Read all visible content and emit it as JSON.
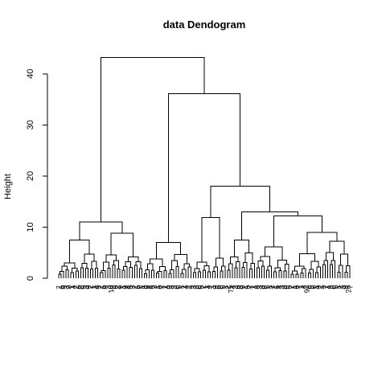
{
  "chart_data": {
    "type": "dendrogram",
    "title": "data Dendogram",
    "ylabel": "Height",
    "xlabel": "",
    "ylim": [
      0,
      45
    ],
    "yticks": [
      0,
      10,
      20,
      30,
      40
    ],
    "leaf_count": 120,
    "merges": [
      {
        "left": [
          1,
          35
        ],
        "right": [
          36,
          120
        ],
        "height": 43.2
      },
      {
        "left": [
          36,
          55
        ],
        "right": [
          56,
          120
        ],
        "height": 36.1
      },
      {
        "left": [
          56,
          69
        ],
        "right": [
          70,
          120
        ],
        "height": 18.0
      },
      {
        "left": [
          70,
          81
        ],
        "right": [
          82,
          120
        ],
        "height": 13.0
      },
      {
        "left": [
          82,
          95
        ],
        "right": [
          96,
          120
        ],
        "height": 12.2
      },
      {
        "left": [
          1,
          17
        ],
        "right": [
          18,
          35
        ],
        "height": 11.0
      },
      {
        "left": [
          56,
          63
        ],
        "right": [
          64,
          69
        ],
        "height": 11.9
      },
      {
        "left": [
          96,
          108
        ],
        "right": [
          109,
          120
        ],
        "height": 9.0
      },
      {
        "left": [
          18,
          26
        ],
        "right": [
          27,
          35
        ],
        "height": 8.8
      },
      {
        "left": [
          1,
          9
        ],
        "right": [
          10,
          17
        ],
        "height": 7.5
      },
      {
        "left": [
          36,
          45
        ],
        "right": [
          46,
          55
        ],
        "height": 7.0
      },
      {
        "left": [
          70,
          75
        ],
        "right": [
          76,
          81
        ],
        "height": 7.5
      },
      {
        "left": [
          109,
          114
        ],
        "right": [
          115,
          120
        ],
        "height": 7.2
      },
      {
        "left": [
          82,
          88
        ],
        "right": [
          89,
          95
        ],
        "height": 6.1
      }
    ],
    "leaf_labels": [
      "7",
      "6",
      "9",
      "3",
      "8",
      "1",
      "4",
      "2",
      "6",
      "8",
      "5",
      "3",
      "9",
      "2",
      "1",
      "4",
      "5",
      "7",
      "6",
      "9",
      "3",
      "10",
      "8",
      "6",
      "2",
      "9",
      "1",
      "0",
      "4",
      "5",
      "3",
      "7",
      "6",
      "8",
      "1",
      "8",
      "6",
      "4",
      "5",
      "3",
      "1",
      "6",
      "2",
      "7",
      "4",
      "9",
      "8",
      "3",
      "6",
      "5",
      "1",
      "2",
      "4",
      "7",
      "9",
      "3",
      "8",
      "6",
      "5",
      "2",
      "1",
      "4",
      "7",
      "3",
      "9",
      "6",
      "8",
      "5",
      "1",
      "2",
      "75",
      "4",
      "3",
      "6",
      "8",
      "9",
      "1",
      "5",
      "2",
      "7",
      "4",
      "6",
      "3",
      "8",
      "9",
      "5",
      "1",
      "2",
      "7",
      "6",
      "4",
      "3",
      "8",
      "9",
      "5",
      "2",
      "1",
      "6",
      "7",
      "3",
      "4",
      "92",
      "8",
      "5",
      "6",
      "1",
      "9",
      "2",
      "3",
      "7",
      "4",
      "8",
      "6",
      "5",
      "1",
      "2",
      "3",
      "9",
      "28",
      "7"
    ]
  }
}
